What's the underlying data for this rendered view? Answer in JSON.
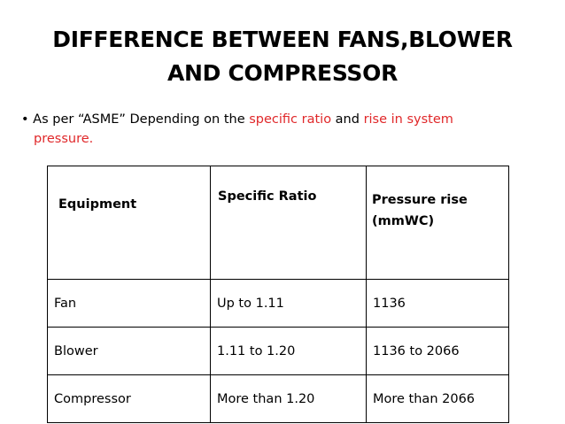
{
  "slide": {
    "title_line1": "DIFFERENCE BETWEEN FANS,BLOWER",
    "title_line2": "AND COMPRESSOR"
  },
  "bullet": {
    "marker": "•",
    "text_start": "As per “ASME” Depending on the ",
    "highlight1": "specific ratio",
    "text_mid": " and ",
    "highlight2": "rise in system",
    "highlight2_cont": "pressure.",
    "accent_color": "#e0282a"
  },
  "table": {
    "headers": {
      "equipment": "Equipment",
      "specific_ratio": "Specific Ratio",
      "pressure_rise_line1": "Pressure rise",
      "pressure_rise_line2": "(mmWC)"
    },
    "rows": [
      {
        "equipment": "Fan",
        "specific_ratio": "Up to 1.11",
        "pressure_rise": "1136"
      },
      {
        "equipment": "Blower",
        "specific_ratio": "1.11 to 1.20",
        "pressure_rise": "1136 to 2066"
      },
      {
        "equipment": "Compressor",
        "specific_ratio": "More than 1.20",
        "pressure_rise": "More than 2066"
      }
    ]
  }
}
